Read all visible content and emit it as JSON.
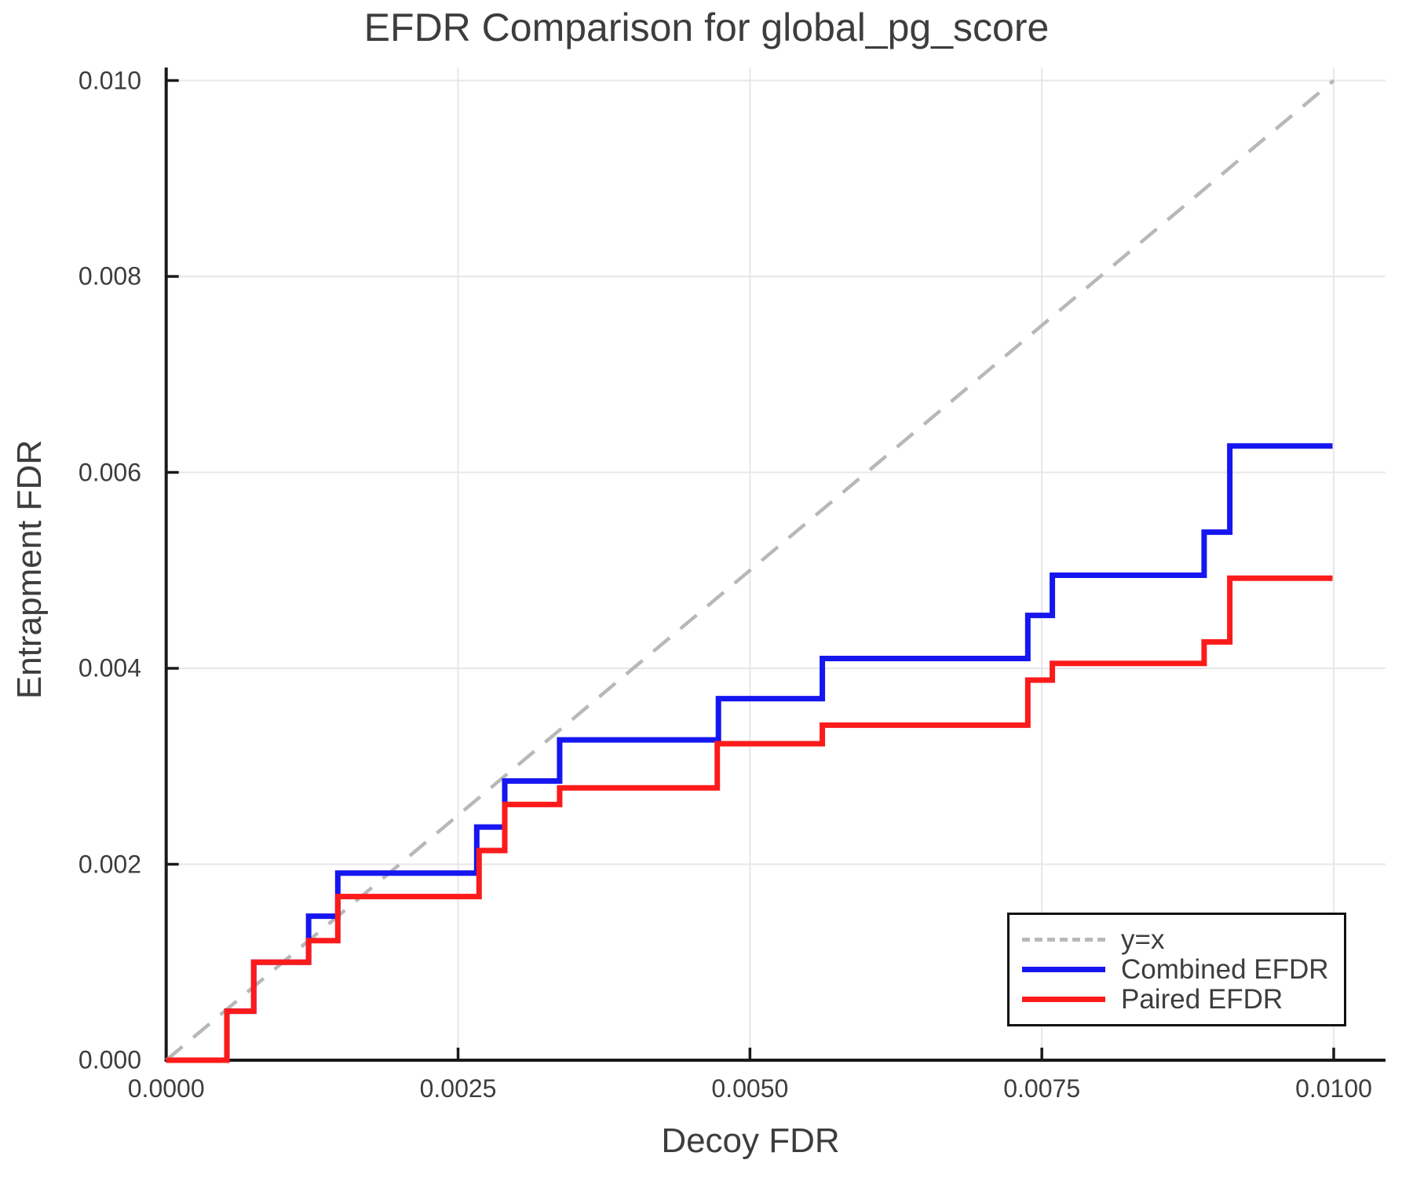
{
  "figure": {
    "title": "EFDR Comparison for global_pg_score",
    "xlabel": "Decoy FDR",
    "ylabel": "Entrapment FDR"
  },
  "chart_data": {
    "type": "line",
    "subtype": "step-post",
    "title": "EFDR Comparison for global_pg_score",
    "xlabel": "Decoy FDR",
    "ylabel": "Entrapment FDR",
    "xlim": [
      0,
      0.01
    ],
    "ylim": [
      0,
      0.01
    ],
    "grid": true,
    "legend_position": "lower right",
    "x_ticks": [
      {
        "value": 0.0,
        "label": "0.0000"
      },
      {
        "value": 0.0025,
        "label": "0.0025"
      },
      {
        "value": 0.005,
        "label": "0.0050"
      },
      {
        "value": 0.0075,
        "label": "0.0075"
      },
      {
        "value": 0.01,
        "label": "0.0100"
      }
    ],
    "y_ticks": [
      {
        "value": 0.0,
        "label": "0.000"
      },
      {
        "value": 0.002,
        "label": "0.002"
      },
      {
        "value": 0.004,
        "label": "0.004"
      },
      {
        "value": 0.006,
        "label": "0.006"
      },
      {
        "value": 0.008,
        "label": "0.008"
      },
      {
        "value": 0.01,
        "label": "0.010"
      }
    ],
    "reference_line": {
      "label": "y=x",
      "style": "dashed",
      "color": "#b8b8b8",
      "from": [
        0,
        0
      ],
      "to": [
        0.01,
        0.01
      ]
    },
    "series": [
      {
        "name": "Combined EFDR",
        "color": "#1616f0",
        "step": "post",
        "points": [
          [
            0.0,
            0.0
          ],
          [
            0.00052,
            0.0005
          ],
          [
            0.00075,
            0.001
          ],
          [
            0.00122,
            0.00147
          ],
          [
            0.00147,
            0.00191
          ],
          [
            0.00266,
            0.00238
          ],
          [
            0.0029,
            0.00285
          ],
          [
            0.00337,
            0.00327
          ],
          [
            0.00473,
            0.00369
          ],
          [
            0.00562,
            0.0041
          ],
          [
            0.00738,
            0.00454
          ],
          [
            0.00759,
            0.00495
          ],
          [
            0.00889,
            0.00539
          ],
          [
            0.00911,
            0.00627
          ],
          [
            0.00999,
            0.00627
          ]
        ]
      },
      {
        "name": "Paired EFDR",
        "color": "#fb1b1b",
        "step": "post",
        "points": [
          [
            0.0,
            0.0
          ],
          [
            0.00052,
            0.0005
          ],
          [
            0.00075,
            0.001
          ],
          [
            0.00122,
            0.00122
          ],
          [
            0.00147,
            0.00167
          ],
          [
            0.00268,
            0.00214
          ],
          [
            0.0029,
            0.00261
          ],
          [
            0.00337,
            0.00278
          ],
          [
            0.00472,
            0.00323
          ],
          [
            0.00562,
            0.00342
          ],
          [
            0.00738,
            0.00388
          ],
          [
            0.00759,
            0.00405
          ],
          [
            0.00889,
            0.00427
          ],
          [
            0.00911,
            0.00492
          ],
          [
            0.00999,
            0.00492
          ]
        ]
      }
    ]
  },
  "legend": {
    "items": [
      {
        "label": "y=x"
      },
      {
        "label": "Combined EFDR"
      },
      {
        "label": "Paired EFDR"
      }
    ]
  }
}
